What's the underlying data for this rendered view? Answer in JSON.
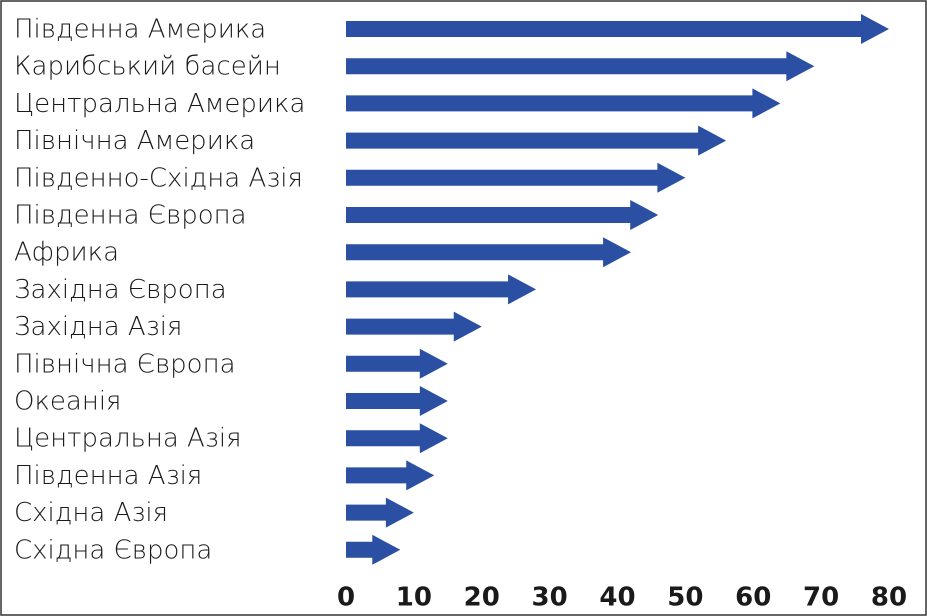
{
  "chart_data": {
    "type": "bar",
    "orientation": "horizontal",
    "mark_shape": "arrow",
    "categories": [
      "Південна Америка",
      "Карибський басейн",
      "Центральна Америка",
      "Північна Америка",
      "Південно-Східна Азія",
      "Південна Європа",
      "Африка",
      "Західна Європа",
      "Західна Азія",
      "Північна Європа",
      "Океанія",
      "Центральна Азія",
      "Південна Азія",
      "Східна Азія",
      "Східна Європа"
    ],
    "values": [
      80,
      69,
      64,
      56,
      50,
      46,
      42,
      28,
      20,
      15,
      15,
      15,
      13,
      10,
      8
    ],
    "color": "#2a4fa3",
    "xlim": [
      0,
      80
    ],
    "xticks": [
      0,
      10,
      20,
      30,
      40,
      50,
      60,
      70,
      80
    ],
    "grid": false
  }
}
